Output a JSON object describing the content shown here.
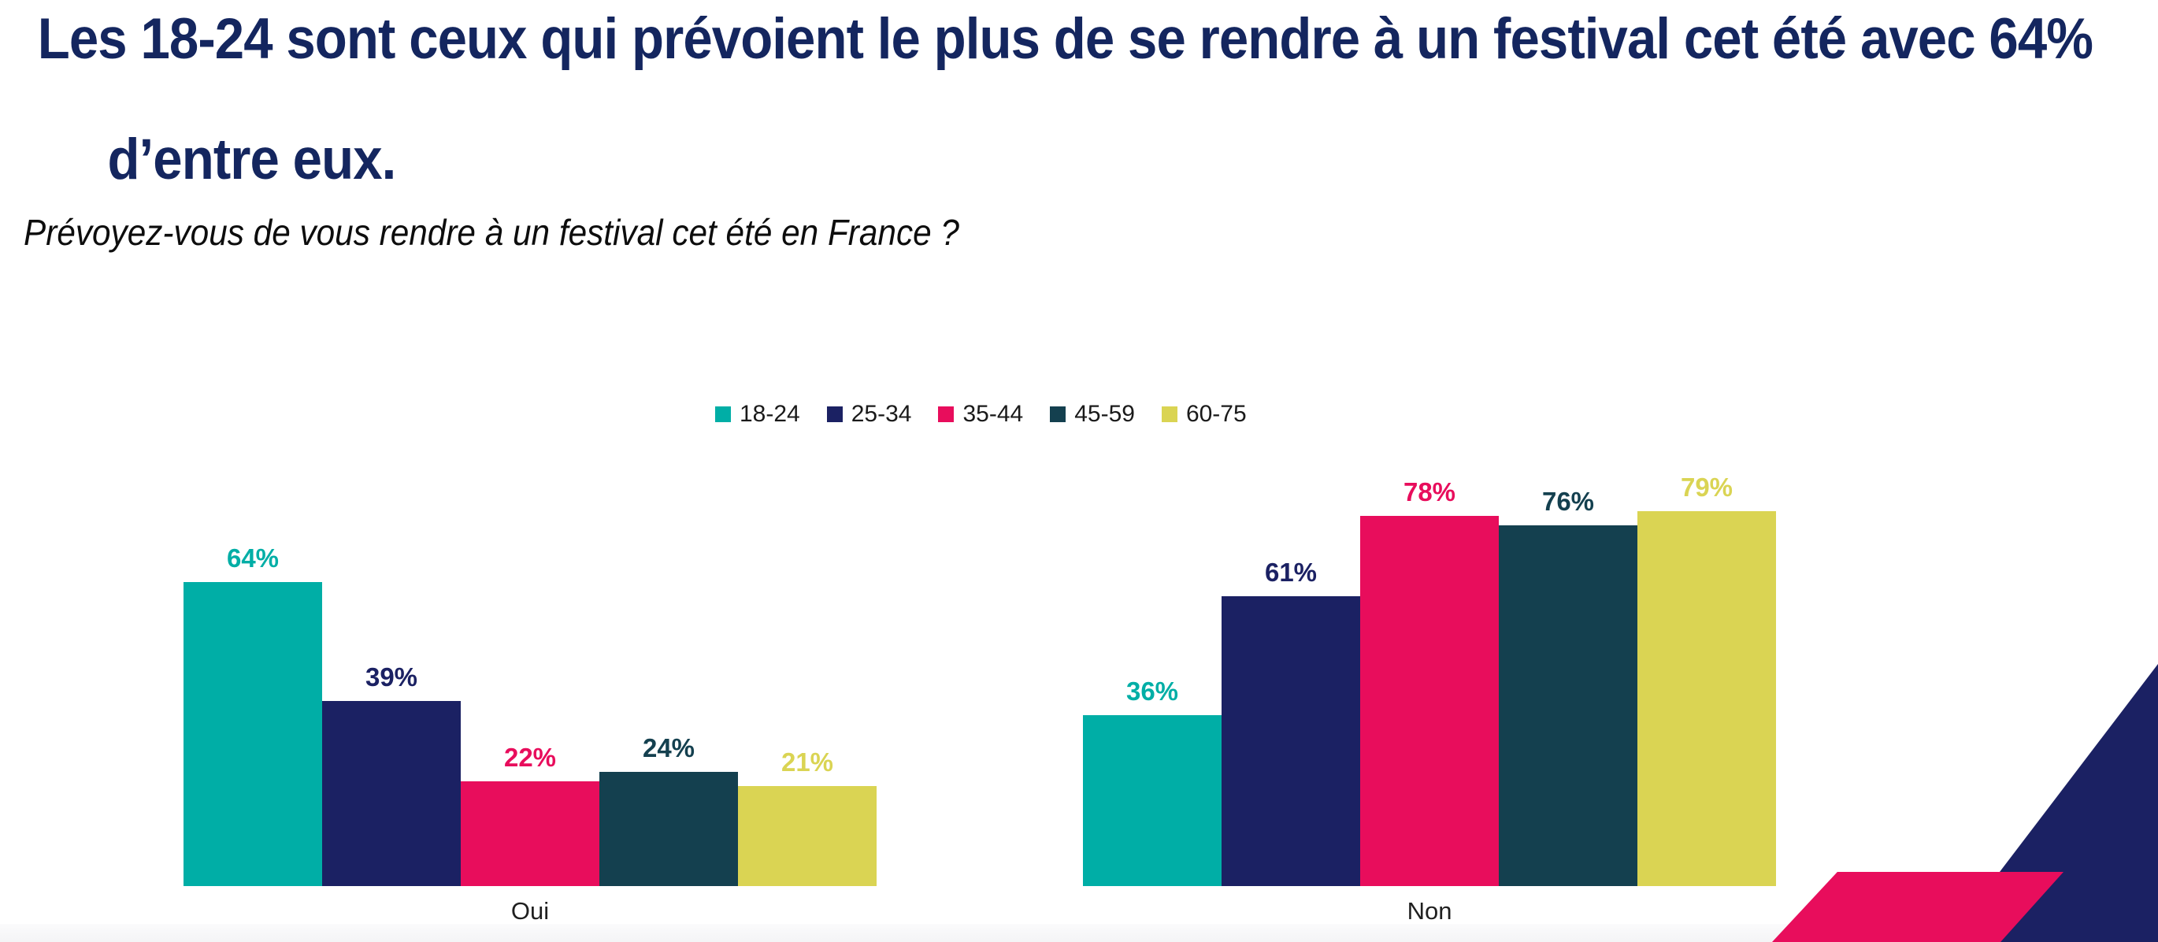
{
  "header": {
    "title_line1": " Les 18-24 sont ceux qui prévoient le plus de se rendre à un festival cet été avec 64%",
    "title_line2": "d’entre eux.",
    "subtitle": "Prévoyez-vous de vous rendre à un festival cet été en France ?"
  },
  "palette": {
    "title_text": "#14265f",
    "subtitle_text": "#0d0d0d",
    "background": "#ffffff",
    "footer_band": "#f6f6f8",
    "decor_triangle": "#1b2163",
    "decor_parallelogram": "#e80d5c"
  },
  "chart_data": {
    "type": "bar",
    "title": "",
    "categories": [
      "Oui",
      "Non"
    ],
    "series": [
      {
        "name": "18-24",
        "color": "#00aea6",
        "values": [
          64,
          36
        ]
      },
      {
        "name": "25-34",
        "color": "#1b2163",
        "values": [
          39,
          61
        ]
      },
      {
        "name": "35-44",
        "color": "#e80d5c",
        "values": [
          22,
          78
        ]
      },
      {
        "name": "45-59",
        "color": "#14404f",
        "values": [
          24,
          76
        ]
      },
      {
        "name": "60-75",
        "color": "#dad453",
        "values": [
          21,
          79
        ]
      }
    ],
    "value_suffix": "%",
    "ylim": [
      0,
      100
    ],
    "grid": false,
    "axes_visible": false,
    "bar_value_labels": true,
    "legend_position": "top-center"
  }
}
